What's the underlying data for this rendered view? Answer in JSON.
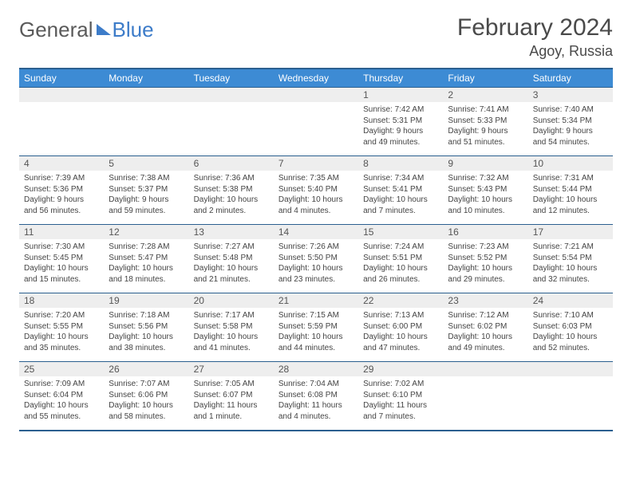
{
  "logo": {
    "text1": "General",
    "text2": "Blue"
  },
  "title": "February 2024",
  "location": "Agoy, Russia",
  "colors": {
    "header_bg": "#3d8bd4",
    "border": "#2b5f8f",
    "daynum_bg": "#eeeeee",
    "text": "#444444"
  },
  "dayHeaders": [
    "Sunday",
    "Monday",
    "Tuesday",
    "Wednesday",
    "Thursday",
    "Friday",
    "Saturday"
  ],
  "weeks": [
    [
      null,
      null,
      null,
      null,
      {
        "n": "1",
        "sr": "Sunrise: 7:42 AM",
        "ss": "Sunset: 5:31 PM",
        "d1": "Daylight: 9 hours",
        "d2": "and 49 minutes."
      },
      {
        "n": "2",
        "sr": "Sunrise: 7:41 AM",
        "ss": "Sunset: 5:33 PM",
        "d1": "Daylight: 9 hours",
        "d2": "and 51 minutes."
      },
      {
        "n": "3",
        "sr": "Sunrise: 7:40 AM",
        "ss": "Sunset: 5:34 PM",
        "d1": "Daylight: 9 hours",
        "d2": "and 54 minutes."
      }
    ],
    [
      {
        "n": "4",
        "sr": "Sunrise: 7:39 AM",
        "ss": "Sunset: 5:36 PM",
        "d1": "Daylight: 9 hours",
        "d2": "and 56 minutes."
      },
      {
        "n": "5",
        "sr": "Sunrise: 7:38 AM",
        "ss": "Sunset: 5:37 PM",
        "d1": "Daylight: 9 hours",
        "d2": "and 59 minutes."
      },
      {
        "n": "6",
        "sr": "Sunrise: 7:36 AM",
        "ss": "Sunset: 5:38 PM",
        "d1": "Daylight: 10 hours",
        "d2": "and 2 minutes."
      },
      {
        "n": "7",
        "sr": "Sunrise: 7:35 AM",
        "ss": "Sunset: 5:40 PM",
        "d1": "Daylight: 10 hours",
        "d2": "and 4 minutes."
      },
      {
        "n": "8",
        "sr": "Sunrise: 7:34 AM",
        "ss": "Sunset: 5:41 PM",
        "d1": "Daylight: 10 hours",
        "d2": "and 7 minutes."
      },
      {
        "n": "9",
        "sr": "Sunrise: 7:32 AM",
        "ss": "Sunset: 5:43 PM",
        "d1": "Daylight: 10 hours",
        "d2": "and 10 minutes."
      },
      {
        "n": "10",
        "sr": "Sunrise: 7:31 AM",
        "ss": "Sunset: 5:44 PM",
        "d1": "Daylight: 10 hours",
        "d2": "and 12 minutes."
      }
    ],
    [
      {
        "n": "11",
        "sr": "Sunrise: 7:30 AM",
        "ss": "Sunset: 5:45 PM",
        "d1": "Daylight: 10 hours",
        "d2": "and 15 minutes."
      },
      {
        "n": "12",
        "sr": "Sunrise: 7:28 AM",
        "ss": "Sunset: 5:47 PM",
        "d1": "Daylight: 10 hours",
        "d2": "and 18 minutes."
      },
      {
        "n": "13",
        "sr": "Sunrise: 7:27 AM",
        "ss": "Sunset: 5:48 PM",
        "d1": "Daylight: 10 hours",
        "d2": "and 21 minutes."
      },
      {
        "n": "14",
        "sr": "Sunrise: 7:26 AM",
        "ss": "Sunset: 5:50 PM",
        "d1": "Daylight: 10 hours",
        "d2": "and 23 minutes."
      },
      {
        "n": "15",
        "sr": "Sunrise: 7:24 AM",
        "ss": "Sunset: 5:51 PM",
        "d1": "Daylight: 10 hours",
        "d2": "and 26 minutes."
      },
      {
        "n": "16",
        "sr": "Sunrise: 7:23 AM",
        "ss": "Sunset: 5:52 PM",
        "d1": "Daylight: 10 hours",
        "d2": "and 29 minutes."
      },
      {
        "n": "17",
        "sr": "Sunrise: 7:21 AM",
        "ss": "Sunset: 5:54 PM",
        "d1": "Daylight: 10 hours",
        "d2": "and 32 minutes."
      }
    ],
    [
      {
        "n": "18",
        "sr": "Sunrise: 7:20 AM",
        "ss": "Sunset: 5:55 PM",
        "d1": "Daylight: 10 hours",
        "d2": "and 35 minutes."
      },
      {
        "n": "19",
        "sr": "Sunrise: 7:18 AM",
        "ss": "Sunset: 5:56 PM",
        "d1": "Daylight: 10 hours",
        "d2": "and 38 minutes."
      },
      {
        "n": "20",
        "sr": "Sunrise: 7:17 AM",
        "ss": "Sunset: 5:58 PM",
        "d1": "Daylight: 10 hours",
        "d2": "and 41 minutes."
      },
      {
        "n": "21",
        "sr": "Sunrise: 7:15 AM",
        "ss": "Sunset: 5:59 PM",
        "d1": "Daylight: 10 hours",
        "d2": "and 44 minutes."
      },
      {
        "n": "22",
        "sr": "Sunrise: 7:13 AM",
        "ss": "Sunset: 6:00 PM",
        "d1": "Daylight: 10 hours",
        "d2": "and 47 minutes."
      },
      {
        "n": "23",
        "sr": "Sunrise: 7:12 AM",
        "ss": "Sunset: 6:02 PM",
        "d1": "Daylight: 10 hours",
        "d2": "and 49 minutes."
      },
      {
        "n": "24",
        "sr": "Sunrise: 7:10 AM",
        "ss": "Sunset: 6:03 PM",
        "d1": "Daylight: 10 hours",
        "d2": "and 52 minutes."
      }
    ],
    [
      {
        "n": "25",
        "sr": "Sunrise: 7:09 AM",
        "ss": "Sunset: 6:04 PM",
        "d1": "Daylight: 10 hours",
        "d2": "and 55 minutes."
      },
      {
        "n": "26",
        "sr": "Sunrise: 7:07 AM",
        "ss": "Sunset: 6:06 PM",
        "d1": "Daylight: 10 hours",
        "d2": "and 58 minutes."
      },
      {
        "n": "27",
        "sr": "Sunrise: 7:05 AM",
        "ss": "Sunset: 6:07 PM",
        "d1": "Daylight: 11 hours",
        "d2": "and 1 minute."
      },
      {
        "n": "28",
        "sr": "Sunrise: 7:04 AM",
        "ss": "Sunset: 6:08 PM",
        "d1": "Daylight: 11 hours",
        "d2": "and 4 minutes."
      },
      {
        "n": "29",
        "sr": "Sunrise: 7:02 AM",
        "ss": "Sunset: 6:10 PM",
        "d1": "Daylight: 11 hours",
        "d2": "and 7 minutes."
      },
      null,
      null
    ]
  ]
}
